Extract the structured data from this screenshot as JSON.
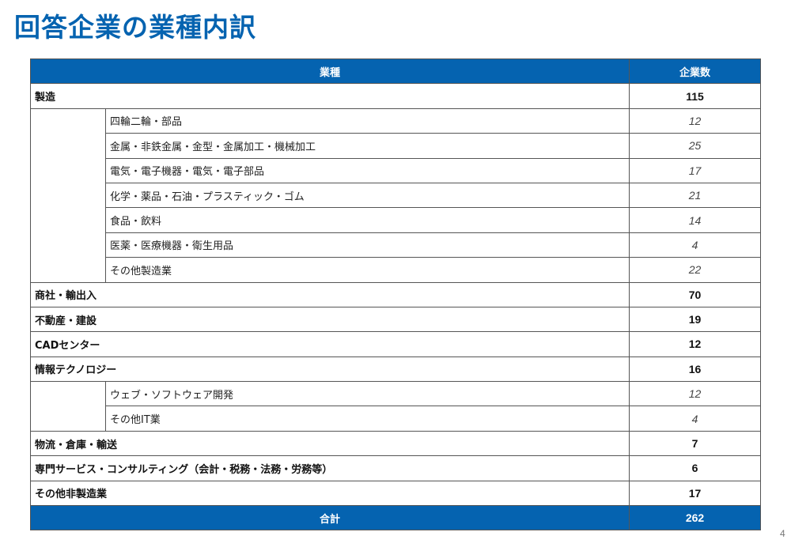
{
  "title": "回答企業の業種内訳",
  "table": {
    "headers": {
      "industry": "業種",
      "count": "企業数"
    },
    "groups": [
      {
        "label": "製造",
        "count": "115",
        "subs": [
          {
            "label": "四輪二輪・部品",
            "count": "12"
          },
          {
            "label": "金属・非鉄金属・金型・金属加工・機械加工",
            "count": "25"
          },
          {
            "label": "電気・電子機器・電気・電子部品",
            "count": "17"
          },
          {
            "label": "化学・薬品・石油・プラスティック・ゴム",
            "count": "21"
          },
          {
            "label": "食品・飲料",
            "count": "14"
          },
          {
            "label": "医薬・医療機器・衛生用品",
            "count": "4"
          },
          {
            "label": "その他製造業",
            "count": "22"
          }
        ]
      },
      {
        "label": "商社・輸出入",
        "count": "70",
        "subs": []
      },
      {
        "label": "不動産・建設",
        "count": "19",
        "subs": []
      },
      {
        "label": "CADセンター",
        "count": "12",
        "subs": []
      },
      {
        "label": "情報テクノロジー",
        "count": "16",
        "subs": [
          {
            "label": "ウェブ・ソフトウェア開発",
            "count": "12"
          },
          {
            "label": "その他IT業",
            "count": "4"
          }
        ]
      },
      {
        "label": "物流・倉庫・輸送",
        "count": "7",
        "subs": []
      },
      {
        "label": "専門サービス・コンサルティング（会計・税務・法務・労務等）",
        "count": "6",
        "subs": []
      },
      {
        "label": "その他非製造業",
        "count": "17",
        "subs": []
      }
    ],
    "total": {
      "label": "合計",
      "count": "262"
    }
  },
  "page_number": "4",
  "colors": {
    "accent": "#0563b0"
  }
}
